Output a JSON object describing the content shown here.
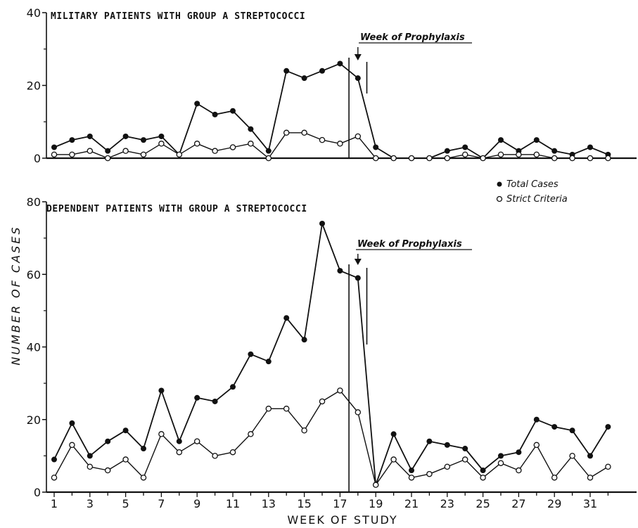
{
  "chart_data": [
    {
      "type": "line",
      "title": "MILITARY PATIENTS WITH GROUP A STREPTOCOCCI",
      "annotation": "Week of Prophylaxis",
      "x": [
        1,
        2,
        3,
        4,
        5,
        6,
        7,
        8,
        9,
        10,
        11,
        12,
        13,
        14,
        15,
        16,
        17,
        18,
        19,
        20,
        21,
        22,
        23,
        24,
        25,
        26,
        27,
        28,
        29,
        30,
        31,
        32
      ],
      "ylim": [
        0,
        40
      ],
      "yticks": [
        "0",
        "20",
        "40"
      ],
      "series": [
        {
          "name": "Total Cases",
          "marker": "filled",
          "values": [
            3,
            5,
            6,
            2,
            6,
            5,
            6,
            1,
            15,
            12,
            13,
            8,
            2,
            24,
            22,
            24,
            26,
            22,
            3,
            0,
            0,
            0,
            2,
            3,
            0,
            5,
            2,
            5,
            2,
            1,
            3,
            1
          ]
        },
        {
          "name": "Strict Criteria",
          "marker": "open",
          "values": [
            1,
            1,
            2,
            0,
            2,
            1,
            4,
            1,
            4,
            2,
            3,
            4,
            0,
            7,
            7,
            5,
            4,
            6,
            0,
            0,
            0,
            0,
            0,
            1,
            0,
            1,
            1,
            1,
            0,
            0,
            0,
            0
          ]
        }
      ]
    },
    {
      "type": "line",
      "title": "DEPENDENT PATIENTS WITH GROUP A STREPTOCOCCI",
      "annotation": "Week of Prophylaxis",
      "ylabel": "NUMBER OF CASES",
      "xlabel": "WEEK OF STUDY",
      "x": [
        1,
        2,
        3,
        4,
        5,
        6,
        7,
        8,
        9,
        10,
        11,
        12,
        13,
        14,
        15,
        16,
        17,
        18,
        19,
        20,
        21,
        22,
        23,
        24,
        25,
        26,
        27,
        28,
        29,
        30,
        31,
        32
      ],
      "xticks": [
        "1",
        "3",
        "5",
        "7",
        "9",
        "11",
        "13",
        "15",
        "17",
        "19",
        "21",
        "23",
        "25",
        "27",
        "29",
        "31"
      ],
      "ylim": [
        0,
        80
      ],
      "yticks": [
        "0",
        "20",
        "40",
        "60",
        "80"
      ],
      "series": [
        {
          "name": "Total Cases",
          "marker": "filled",
          "values": [
            9,
            19,
            10,
            14,
            17,
            12,
            28,
            14,
            26,
            25,
            29,
            38,
            36,
            48,
            42,
            74,
            61,
            59,
            2,
            16,
            6,
            14,
            13,
            12,
            6,
            10,
            11,
            20,
            18,
            17,
            10,
            18
          ]
        },
        {
          "name": "Strict Criteria",
          "marker": "open",
          "values": [
            4,
            13,
            7,
            6,
            9,
            4,
            16,
            11,
            14,
            10,
            11,
            16,
            23,
            23,
            17,
            25,
            28,
            22,
            2,
            9,
            4,
            5,
            7,
            9,
            4,
            8,
            6,
            13,
            4,
            10,
            4,
            7
          ]
        }
      ]
    }
  ],
  "legend": {
    "total_label": "Total Cases",
    "strict_label": "Strict Criteria"
  }
}
